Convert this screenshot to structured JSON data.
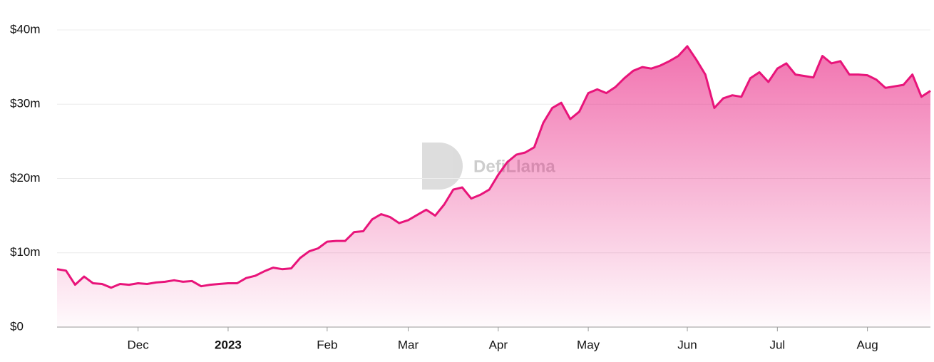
{
  "chart_data": {
    "type": "area",
    "watermark": "DefiLlama",
    "color": "#e8147a",
    "grid": true,
    "ylim": [
      0,
      40
    ],
    "yticks": [
      {
        "value": 0,
        "label": "$0"
      },
      {
        "value": 10,
        "label": "$10m"
      },
      {
        "value": 20,
        "label": "$20m"
      },
      {
        "value": 30,
        "label": "$30m"
      },
      {
        "value": 40,
        "label": "$40m"
      }
    ],
    "categories": [
      null,
      null,
      null,
      null,
      null,
      null,
      null,
      null,
      null,
      "Dec",
      null,
      null,
      null,
      null,
      null,
      null,
      null,
      null,
      null,
      "2023",
      null,
      null,
      null,
      null,
      null,
      null,
      null,
      null,
      null,
      null,
      "Feb",
      null,
      null,
      null,
      null,
      null,
      null,
      null,
      null,
      "Mar",
      null,
      null,
      null,
      null,
      null,
      null,
      null,
      null,
      null,
      "Apr",
      null,
      null,
      null,
      null,
      null,
      null,
      null,
      null,
      null,
      "May",
      null,
      null,
      null,
      null,
      null,
      null,
      null,
      null,
      null,
      null,
      "Jun",
      null,
      null,
      null,
      null,
      null,
      null,
      null,
      null,
      null,
      "Jul",
      null,
      null,
      null,
      null,
      null,
      null,
      null,
      null,
      null,
      "Aug",
      null,
      null,
      null,
      null,
      null,
      null,
      null
    ],
    "values": [
      7.8,
      7.6,
      5.7,
      6.8,
      5.9,
      5.8,
      5.3,
      5.8,
      5.7,
      5.9,
      5.8,
      6.0,
      6.1,
      6.3,
      6.1,
      6.2,
      5.5,
      5.7,
      5.8,
      5.9,
      5.9,
      6.6,
      6.9,
      7.5,
      8.0,
      7.8,
      7.9,
      9.3,
      10.2,
      10.6,
      11.5,
      11.6,
      11.6,
      12.8,
      12.9,
      14.5,
      15.2,
      14.8,
      14.0,
      14.4,
      15.1,
      15.8,
      15.0,
      16.5,
      18.5,
      18.8,
      17.3,
      17.8,
      18.5,
      20.5,
      22.2,
      23.2,
      23.5,
      24.2,
      27.5,
      29.5,
      30.2,
      28.0,
      29.0,
      31.5,
      32.0,
      31.5,
      32.3,
      33.5,
      34.5,
      35.0,
      34.8,
      35.2,
      35.8,
      36.5,
      37.8,
      36.0,
      34.0,
      29.5,
      30.8,
      31.2,
      31.0,
      33.5,
      34.3,
      33.0,
      34.8,
      35.5,
      34.0,
      33.8,
      33.6,
      36.5,
      35.5,
      35.8,
      34.0,
      34.0,
      33.9,
      33.3,
      32.2,
      32.4,
      32.6,
      34.0,
      31.0,
      31.8
    ]
  }
}
